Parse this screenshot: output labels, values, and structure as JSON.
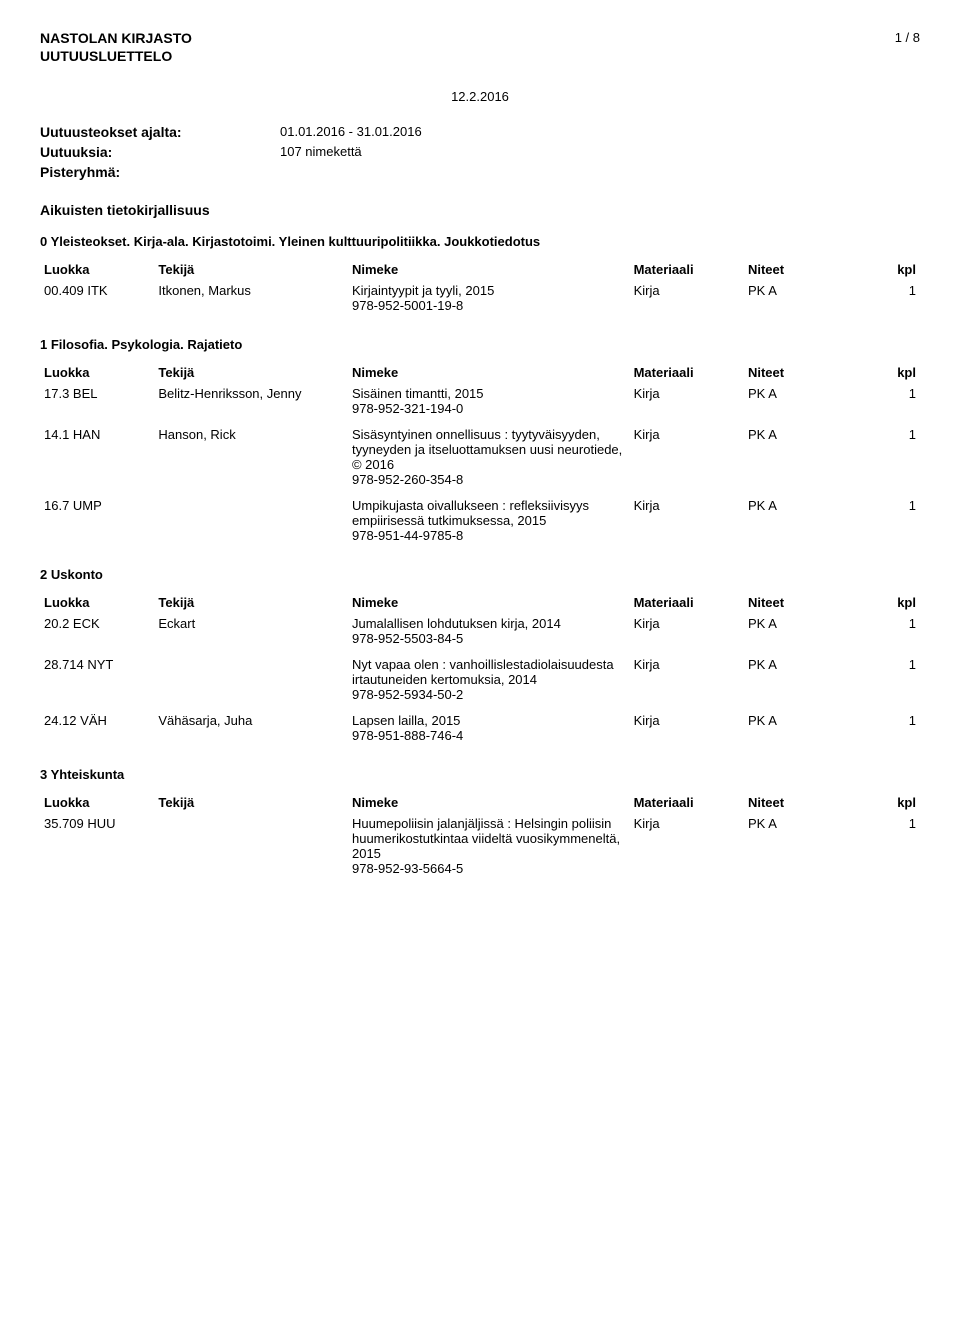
{
  "header": {
    "title1": "NASTOLAN KIRJASTO",
    "title2": "UUTUUSLUETTELO",
    "page_num": "1 / 8",
    "date": "12.2.2016"
  },
  "meta": {
    "ajalta_label": "Uutuusteokset ajalta:",
    "ajalta_value": "01.01.2016 - 31.01.2016",
    "uutuuksia_label": "Uutuuksia:",
    "uutuuksia_value": "107 nimekettä",
    "pisteryhma_label": "Pisteryhmä:"
  },
  "top_section": "Aikuisten tietokirjallisuus",
  "cols": {
    "luokka": "Luokka",
    "tekija": "Tekijä",
    "nimeke": "Nimeke",
    "materiaali": "Materiaali",
    "niteet": "Niteet",
    "kpl": "kpl"
  },
  "sections": [
    {
      "title": "0 Yleisteokset. Kirja-ala. Kirjastotoimi. Yleinen kulttuuripolitiikka. Joukkotiedotus",
      "rows": [
        {
          "luokka": "00.409 ITK",
          "tekija": "Itkonen, Markus",
          "nimeke": "Kirjaintyypit ja tyyli, 2015",
          "isbn": "978-952-5001-19-8",
          "materiaali": "Kirja",
          "niteet": "PK A",
          "kpl": "1"
        }
      ]
    },
    {
      "title": "1 Filosofia. Psykologia. Rajatieto",
      "rows": [
        {
          "luokka": "17.3 BEL",
          "tekija": "Belitz-Henriksson, Jenny",
          "nimeke": "Sisäinen timantti, 2015",
          "isbn": "978-952-321-194-0",
          "materiaali": "Kirja",
          "niteet": "PK A",
          "kpl": "1"
        },
        {
          "luokka": "14.1 HAN",
          "tekija": "Hanson, Rick",
          "nimeke": "Sisäsyntyinen onnellisuus : tyytyväisyyden, tyyneyden ja itseluottamuksen uusi neurotiede, © 2016",
          "isbn": "978-952-260-354-8",
          "materiaali": "Kirja",
          "niteet": "PK A",
          "kpl": "1"
        },
        {
          "luokka": "16.7 UMP",
          "tekija": "",
          "nimeke": "Umpikujasta oivallukseen : refleksiivisyys empiirisessä tutkimuksessa, 2015",
          "isbn": "978-951-44-9785-8",
          "materiaali": "Kirja",
          "niteet": "PK A",
          "kpl": "1"
        }
      ]
    },
    {
      "title": "2 Uskonto",
      "rows": [
        {
          "luokka": "20.2 ECK",
          "tekija": "Eckart",
          "nimeke": "Jumalallisen lohdutuksen kirja, 2014",
          "isbn": "978-952-5503-84-5",
          "materiaali": "Kirja",
          "niteet": "PK A",
          "kpl": "1"
        },
        {
          "luokka": "28.714 NYT",
          "tekija": "",
          "nimeke": "Nyt vapaa olen : vanhoillislestadiolaisuudesta irtautuneiden kertomuksia, 2014",
          "isbn": "978-952-5934-50-2",
          "materiaali": "Kirja",
          "niteet": "PK A",
          "kpl": "1"
        },
        {
          "luokka": "24.12 VÄH",
          "tekija": "Vähäsarja, Juha",
          "nimeke": "Lapsen lailla, 2015",
          "isbn": "978-951-888-746-4",
          "materiaali": "Kirja",
          "niteet": "PK A",
          "kpl": "1"
        }
      ]
    },
    {
      "title": "3 Yhteiskunta",
      "rows": [
        {
          "luokka": "35.709 HUU",
          "tekija": "",
          "nimeke": "Huumepoliisin jalanjäljissä : Helsingin poliisin huumerikostutkintaa viideltä vuosikymmeneltä, 2015",
          "isbn": "978-952-93-5664-5",
          "materiaali": "Kirja",
          "niteet": "PK A",
          "kpl": "1"
        }
      ]
    }
  ]
}
